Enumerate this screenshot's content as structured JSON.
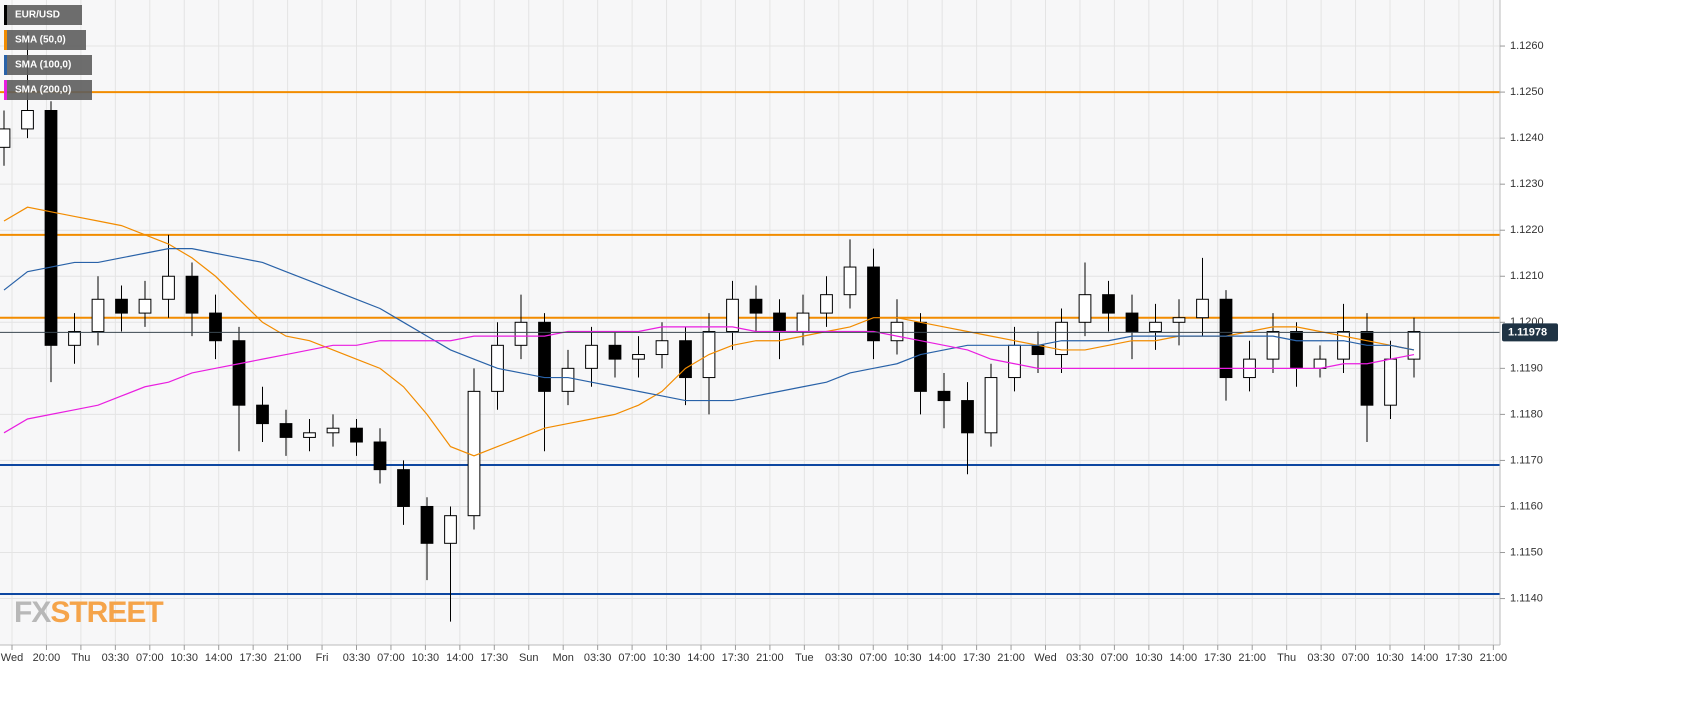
{
  "chart_data": {
    "type": "candlestick",
    "symbol": "EUR/USD",
    "logo": [
      "FX",
      "STREET"
    ],
    "up_color": "#ffffff",
    "down_color": "#000000",
    "ylim": [
      1.1131,
      1.127
    ],
    "yticks": [
      {
        "value": 1.114,
        "label": "1.1140"
      },
      {
        "value": 1.115,
        "label": "1.1150"
      },
      {
        "value": 1.116,
        "label": "1.1160"
      },
      {
        "value": 1.117,
        "label": "1.1170"
      },
      {
        "value": 1.118,
        "label": "1.1180"
      },
      {
        "value": 1.119,
        "label": "1.1190"
      },
      {
        "value": 1.12,
        "label": "1.1200"
      },
      {
        "value": 1.121,
        "label": "1.1210"
      },
      {
        "value": 1.122,
        "label": "1.1220"
      },
      {
        "value": 1.123,
        "label": "1.1230"
      },
      {
        "value": 1.124,
        "label": "1.1240"
      },
      {
        "value": 1.125,
        "label": "1.1250"
      },
      {
        "value": 1.126,
        "label": "1.1260"
      }
    ],
    "xticks": [
      "Wed",
      "20:00",
      "Thu",
      "03:30",
      "07:00",
      "10:30",
      "14:00",
      "17:30",
      "21:00",
      "Fri",
      "03:30",
      "07:00",
      "10:30",
      "14:00",
      "17:30",
      "Sun",
      "Mon",
      "03:30",
      "07:00",
      "10:30",
      "14:00",
      "17:30",
      "21:00",
      "Tue",
      "03:30",
      "07:00",
      "10:30",
      "14:00",
      "17:30",
      "21:00",
      "Wed",
      "03:30",
      "07:00",
      "10:30",
      "14:00",
      "17:30",
      "21:00",
      "Thu",
      "03:30",
      "07:00",
      "10:30",
      "14:00",
      "17:30",
      "21:00"
    ],
    "grid": true,
    "last": 1.11978,
    "levels": [
      {
        "value": 1.125,
        "color": "#f28c00"
      },
      {
        "value": 1.1219,
        "color": "#f28c00"
      },
      {
        "value": 1.1201,
        "color": "#f28c00"
      },
      {
        "value": 1.1169,
        "color": "#0d47a1"
      },
      {
        "value": 1.1141,
        "color": "#0d47a1"
      }
    ],
    "open": [
      1.1238,
      1.1242,
      1.1246,
      1.1195,
      1.1198,
      1.1205,
      1.1202,
      1.1205,
      1.121,
      1.1202,
      1.1196,
      1.1182,
      1.1178,
      1.1175,
      1.1176,
      1.1177,
      1.1174,
      1.1168,
      1.116,
      1.1152,
      1.1158,
      1.1185,
      1.1195,
      1.12,
      1.1185,
      1.119,
      1.1195,
      1.1192,
      1.1193,
      1.1196,
      1.1188,
      1.1198,
      1.1205,
      1.1202,
      1.1198,
      1.1202,
      1.1206,
      1.1212,
      1.1196,
      1.12,
      1.1185,
      1.1183,
      1.1176,
      1.1188,
      1.1195,
      1.1193,
      1.12,
      1.1206,
      1.1202,
      1.1198,
      1.12,
      1.1201,
      1.1205,
      1.1188,
      1.1192,
      1.1198,
      1.119,
      1.1192,
      1.1198,
      1.1182,
      1.1192
    ],
    "high": [
      1.1246,
      1.1263,
      1.1248,
      1.1202,
      1.121,
      1.1208,
      1.1209,
      1.1219,
      1.1213,
      1.1206,
      1.1199,
      1.1186,
      1.1181,
      1.1179,
      1.118,
      1.1179,
      1.1177,
      1.117,
      1.1162,
      1.116,
      1.119,
      1.12,
      1.1206,
      1.1202,
      1.1194,
      1.1199,
      1.1198,
      1.1197,
      1.12,
      1.1199,
      1.1202,
      1.1209,
      1.1208,
      1.1205,
      1.1206,
      1.121,
      1.1218,
      1.1216,
      1.1205,
      1.1202,
      1.1189,
      1.1187,
      1.1191,
      1.1199,
      1.1198,
      1.1203,
      1.1213,
      1.1209,
      1.1206,
      1.1204,
      1.1205,
      1.1214,
      1.1207,
      1.1196,
      1.1202,
      1.12,
      1.1195,
      1.1204,
      1.1202,
      1.1196,
      1.1201
    ],
    "low": [
      1.1234,
      1.124,
      1.1187,
      1.1191,
      1.1195,
      1.1198,
      1.1199,
      1.1201,
      1.1197,
      1.1192,
      1.1172,
      1.1174,
      1.1171,
      1.1172,
      1.1173,
      1.1171,
      1.1165,
      1.1156,
      1.1144,
      1.1135,
      1.1155,
      1.1181,
      1.1192,
      1.1172,
      1.1182,
      1.1186,
      1.1188,
      1.1188,
      1.119,
      1.1182,
      1.118,
      1.1194,
      1.1198,
      1.1192,
      1.1195,
      1.1199,
      1.1203,
      1.1192,
      1.1193,
      1.118,
      1.1177,
      1.1167,
      1.1173,
      1.1185,
      1.1189,
      1.1189,
      1.1197,
      1.1198,
      1.1192,
      1.1194,
      1.1195,
      1.1197,
      1.1183,
      1.1185,
      1.1189,
      1.1186,
      1.1188,
      1.1189,
      1.1174,
      1.1179,
      1.1188
    ],
    "close": [
      1.1242,
      1.1246,
      1.1195,
      1.1198,
      1.1205,
      1.1202,
      1.1205,
      1.121,
      1.1202,
      1.1196,
      1.1182,
      1.1178,
      1.1175,
      1.1176,
      1.1177,
      1.1174,
      1.1168,
      1.116,
      1.1152,
      1.1158,
      1.1185,
      1.1195,
      1.12,
      1.1185,
      1.119,
      1.1195,
      1.1192,
      1.1193,
      1.1196,
      1.1188,
      1.1198,
      1.1205,
      1.1202,
      1.1198,
      1.1202,
      1.1206,
      1.1212,
      1.1196,
      1.12,
      1.1185,
      1.1183,
      1.1176,
      1.1188,
      1.1195,
      1.1193,
      1.12,
      1.1206,
      1.1202,
      1.1198,
      1.12,
      1.1201,
      1.1205,
      1.1188,
      1.1192,
      1.1198,
      1.119,
      1.1192,
      1.1198,
      1.1182,
      1.1192,
      1.1198
    ],
    "series": [
      {
        "name": "SMA (50,0)",
        "color": "#f28c00",
        "values": [
          1.1222,
          1.1225,
          1.1224,
          1.1223,
          1.1222,
          1.1221,
          1.1219,
          1.1217,
          1.1214,
          1.121,
          1.1205,
          1.12,
          1.1197,
          1.1196,
          1.1194,
          1.1192,
          1.119,
          1.1186,
          1.118,
          1.1173,
          1.1171,
          1.1173,
          1.1175,
          1.1177,
          1.1178,
          1.1179,
          1.118,
          1.1182,
          1.1185,
          1.119,
          1.1193,
          1.1195,
          1.1196,
          1.1196,
          1.1197,
          1.1198,
          1.1199,
          1.1201,
          1.1201,
          1.12,
          1.1199,
          1.1198,
          1.1197,
          1.1196,
          1.1195,
          1.1194,
          1.1194,
          1.1195,
          1.1196,
          1.1196,
          1.1197,
          1.1197,
          1.1197,
          1.1198,
          1.1199,
          1.1199,
          1.1198,
          1.1197,
          1.1196,
          1.1195,
          1.1194
        ]
      },
      {
        "name": "SMA (100,0)",
        "color": "#2962a8",
        "values": [
          1.1207,
          1.1211,
          1.1212,
          1.1213,
          1.1213,
          1.1214,
          1.1215,
          1.1216,
          1.1216,
          1.1215,
          1.1214,
          1.1213,
          1.1211,
          1.1209,
          1.1207,
          1.1205,
          1.1203,
          1.12,
          1.1197,
          1.1194,
          1.1192,
          1.119,
          1.1189,
          1.1188,
          1.1188,
          1.1187,
          1.1186,
          1.1185,
          1.1184,
          1.1183,
          1.1183,
          1.1183,
          1.1184,
          1.1185,
          1.1186,
          1.1187,
          1.1189,
          1.119,
          1.1191,
          1.1193,
          1.1194,
          1.1195,
          1.1195,
          1.1195,
          1.1195,
          1.1196,
          1.1196,
          1.1196,
          1.1197,
          1.1197,
          1.1197,
          1.1197,
          1.1197,
          1.1197,
          1.1197,
          1.1196,
          1.1196,
          1.1196,
          1.1195,
          1.1195,
          1.1194
        ]
      },
      {
        "name": "SMA (200,0)",
        "color": "#e91ee0",
        "values": [
          1.1176,
          1.1179,
          1.118,
          1.1181,
          1.1182,
          1.1184,
          1.1186,
          1.1187,
          1.1189,
          1.119,
          1.1191,
          1.1192,
          1.1193,
          1.1194,
          1.1195,
          1.1195,
          1.1196,
          1.1196,
          1.1196,
          1.1196,
          1.1197,
          1.1197,
          1.1197,
          1.1197,
          1.1198,
          1.1198,
          1.1198,
          1.1198,
          1.1199,
          1.1199,
          1.1199,
          1.1199,
          1.1198,
          1.1198,
          1.1198,
          1.1198,
          1.1198,
          1.1198,
          1.1197,
          1.1196,
          1.1195,
          1.1194,
          1.1192,
          1.1191,
          1.119,
          1.119,
          1.119,
          1.119,
          1.119,
          1.119,
          1.119,
          1.119,
          1.119,
          1.119,
          1.119,
          1.119,
          1.119,
          1.1191,
          1.1191,
          1.1192,
          1.1193
        ]
      }
    ]
  }
}
